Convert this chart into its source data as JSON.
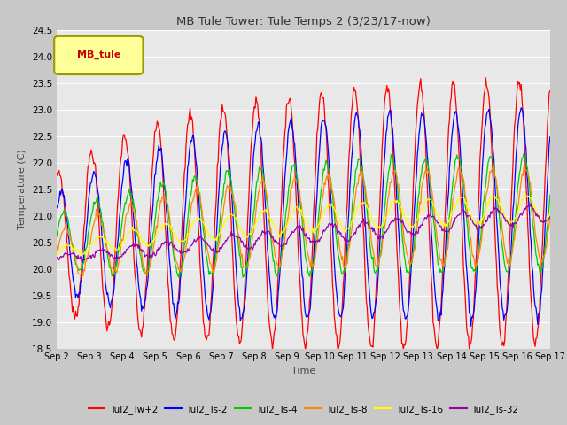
{
  "title": "MB Tule Tower: Tule Temps 2 (3/23/17-now)",
  "xlabel": "Time",
  "ylabel": "Temperature (C)",
  "ylim": [
    18.5,
    24.5
  ],
  "yticks": [
    18.5,
    19.0,
    19.5,
    20.0,
    20.5,
    21.0,
    21.5,
    22.0,
    22.5,
    23.0,
    23.5,
    24.0,
    24.5
  ],
  "xtick_labels": [
    "Sep 2",
    "Sep 3",
    "Sep 4",
    "Sep 5",
    "Sep 6",
    "Sep 7",
    "Sep 8",
    "Sep 9",
    "Sep 10",
    "Sep 11",
    "Sep 12",
    "Sep 13",
    "Sep 14",
    "Sep 15",
    "Sep 16",
    "Sep 17"
  ],
  "fig_bg_color": "#c8c8c8",
  "plot_bg_color": "#e8e8e8",
  "grid_color": "#ffffff",
  "series": [
    {
      "label": "Tul2_Tw+2",
      "color": "#ff0000"
    },
    {
      "label": "Tul2_Ts-2",
      "color": "#0000ff"
    },
    {
      "label": "Tul2_Ts-4",
      "color": "#00cc00"
    },
    {
      "label": "Tul2_Ts-8",
      "color": "#ff8800"
    },
    {
      "label": "Tul2_Ts-16",
      "color": "#ffff00"
    },
    {
      "label": "Tul2_Ts-32",
      "color": "#9900aa"
    }
  ],
  "legend_box_facecolor": "#ffff99",
  "legend_box_edgecolor": "#999900",
  "legend_box_text": "MB_tule",
  "legend_box_text_color": "#cc0000",
  "n_points": 600
}
